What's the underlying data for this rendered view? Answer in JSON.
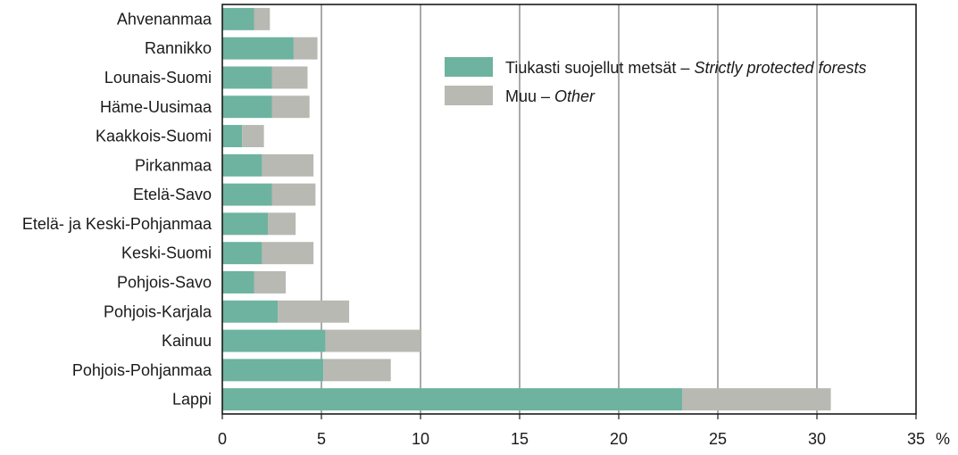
{
  "chart_data": {
    "type": "bar",
    "orientation": "horizontal",
    "stacked": true,
    "categories": [
      "Ahvenanmaa",
      "Rannikko",
      "Lounais-Suomi",
      "Häme-Uusimaa",
      "Kaakkois-Suomi",
      "Pirkanmaa",
      "Etelä-Savo",
      "Etelä- ja Keski-Pohjanmaa",
      "Keski-Suomi",
      "Pohjois-Savo",
      "Pohjois-Karjala",
      "Kainuu",
      "Pohjois-Pohjanmaa",
      "Lappi"
    ],
    "series": [
      {
        "name": "Tiukasti suojellut metsät",
        "name_en": "Strictly protected forests",
        "color": "#6db39f",
        "values": [
          1.6,
          3.6,
          2.5,
          2.5,
          1.0,
          2.0,
          2.5,
          2.3,
          2.0,
          1.6,
          2.8,
          5.2,
          5.1,
          23.2
        ]
      },
      {
        "name": "Muu",
        "name_en": "Other",
        "color": "#b7b9b2",
        "values": [
          0.8,
          1.2,
          1.8,
          1.9,
          1.1,
          2.6,
          2.2,
          1.4,
          2.6,
          1.6,
          3.6,
          4.8,
          3.4,
          7.5
        ]
      }
    ],
    "xlim": [
      0,
      35
    ],
    "xticks": [
      "0",
      "5",
      "10",
      "15",
      "20",
      "25",
      "30",
      "35"
    ],
    "x_unit": "%",
    "grid": "vertical",
    "legend_position": "top-right"
  }
}
